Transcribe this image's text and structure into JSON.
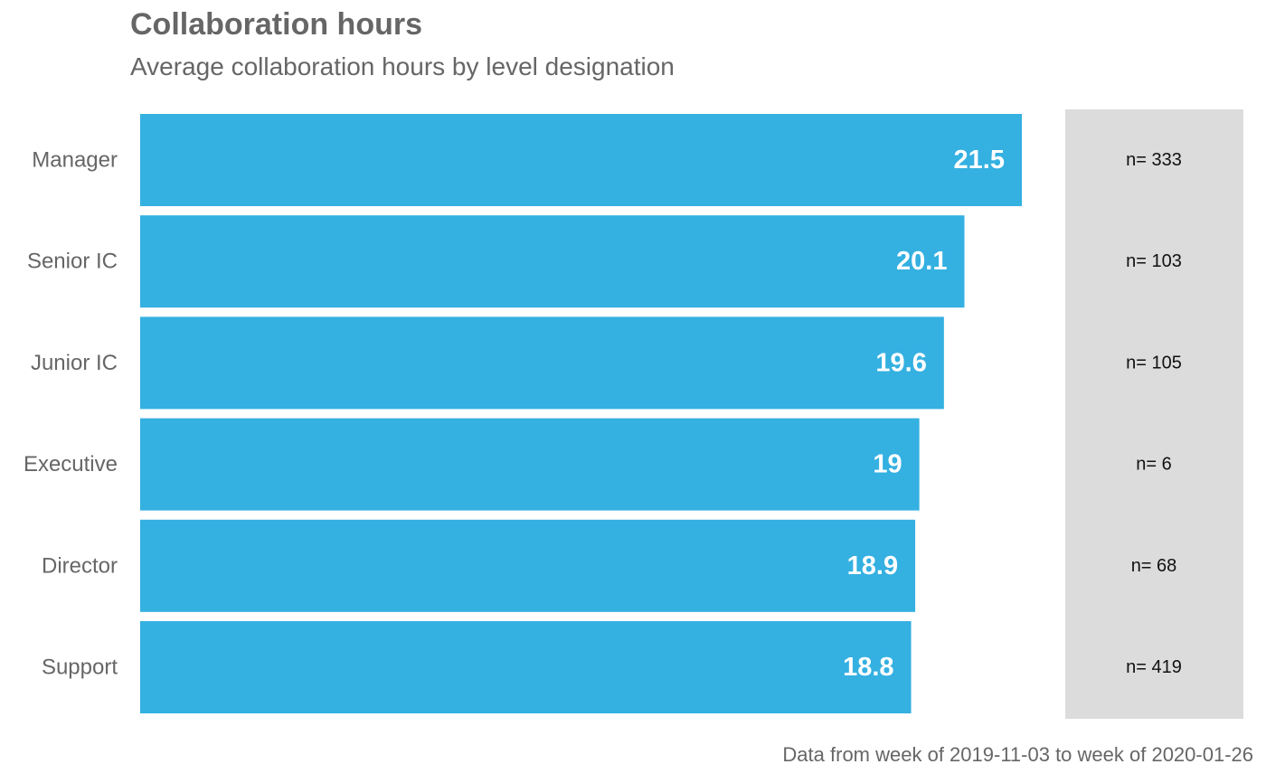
{
  "chart_data": {
    "type": "bar",
    "orientation": "horizontal",
    "title": "Collaboration hours",
    "subtitle": "Average collaboration hours by level designation",
    "caption": "Data from week of 2019-11-03 to week of 2020-01-26",
    "categories": [
      "Manager",
      "Senior IC",
      "Junior IC",
      "Executive",
      "Director",
      "Support"
    ],
    "values": [
      21.5,
      20.1,
      19.6,
      19,
      18.9,
      18.8
    ],
    "value_labels": [
      "21.5",
      "20.1",
      "19.6",
      "19",
      "18.9",
      "18.8"
    ],
    "counts": [
      "n= 333",
      "n= 103",
      "n= 105",
      "n= 6",
      "n= 68",
      "n= 419"
    ],
    "xlim": [
      0,
      21.5
    ],
    "grid": false,
    "legend": "none",
    "colors": {
      "bar": "#34b0e1",
      "count_panel": "#dcdcdc",
      "value_label": "#ffffff",
      "axis_text": "#666666",
      "count_text": "#111111"
    }
  }
}
